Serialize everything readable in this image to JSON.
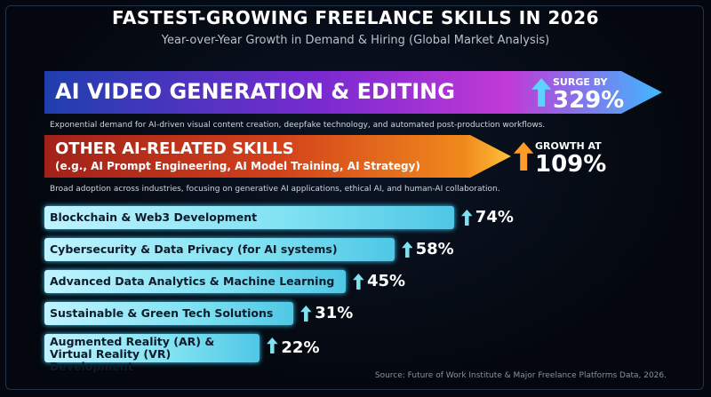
{
  "chart_data": {
    "type": "bar",
    "orientation": "horizontal",
    "title": "FASTEST-GROWING FREELANCE SKILLS IN 2026",
    "subtitle": "Year-over-Year Growth in Demand & Hiring (Global Market Analysis)",
    "categories": [
      "AI VIDEO GENERATION & EDITING",
      "OTHER AI-RELATED SKILLS",
      "Blockchain & Web3 Development",
      "Cybersecurity & Data Privacy (for AI systems)",
      "Advanced Data Analytics & Machine Learning",
      "Sustainable & Green Tech Solutions",
      "Augmented Reality (AR) & Virtual Reality (VR) Development"
    ],
    "examples": "(e.g., AI Prompt Engineering, AI Model Training, AI Strategy)",
    "notes": [
      "Exponential demand for AI-driven visual content creation, deepfake technology, and automated post-production workflows.",
      "Broad adoption across industries, focusing on generative AI applications, ethical AI, and human-AI collaboration."
    ],
    "value_prefixes": [
      "SURGE BY",
      "GROWTH AT"
    ],
    "values": [
      329,
      109,
      74,
      58,
      45,
      31,
      22
    ],
    "value_labels": [
      "329%",
      "109%",
      "74%",
      "58%",
      "45%",
      "31%",
      "22%"
    ],
    "color": "#7fe2f2",
    "source": "Source: Future of Work Institute & Major Freelance Platforms Data, 2026."
  }
}
